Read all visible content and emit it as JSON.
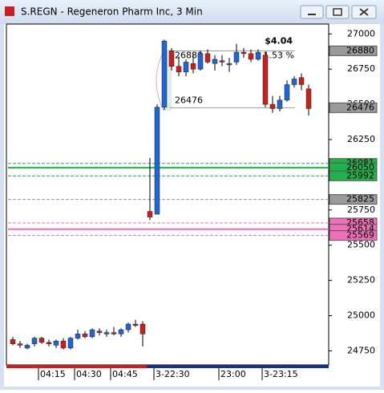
{
  "chart_data": {
    "type": "candlestick",
    "title": "S.REGN - Regeneron Pharm Inc, 3 Min",
    "categories": [
      null,
      null,
      null,
      null,
      "04:15",
      null,
      null,
      null,
      null,
      "04:30",
      null,
      null,
      null,
      null,
      "04:45",
      null,
      null,
      null,
      null,
      null,
      "3-22:30",
      null,
      null,
      null,
      null,
      null,
      null,
      null,
      null,
      "23:00",
      null,
      null,
      null,
      null,
      null,
      "3-23:15",
      null,
      null,
      null,
      null,
      null,
      null
    ],
    "open": [
      24830,
      24800,
      24770,
      24800,
      24840,
      24810,
      24790,
      24820,
      24770,
      24840,
      24870,
      24850,
      24890,
      24870,
      24880,
      24870,
      24900,
      24940,
      24940,
      25740,
      25720,
      26480,
      26880,
      26770,
      26730,
      26790,
      26750,
      26860,
      26790,
      26810,
      26780,
      26800,
      26870,
      26860,
      26820,
      26850,
      26500,
      26470,
      26530,
      26640,
      26690,
      26610
    ],
    "high": [
      24850,
      24820,
      24800,
      24850,
      24850,
      24830,
      24830,
      24840,
      24850,
      24900,
      24890,
      24910,
      24910,
      24900,
      24920,
      24910,
      24950,
      24970,
      24960,
      26120,
      26500,
      26960,
      26900,
      26840,
      26820,
      26860,
      26880,
      26890,
      26850,
      26850,
      26830,
      26930,
      26900,
      26890,
      26890,
      26870,
      26560,
      26560,
      26670,
      26700,
      26720,
      26640
    ],
    "low": [
      24790,
      24770,
      24760,
      24780,
      24800,
      24780,
      24770,
      24760,
      24760,
      24830,
      24840,
      24840,
      24860,
      24850,
      24860,
      24850,
      24880,
      24920,
      24780,
      25680,
      25720,
      26460,
      26740,
      26700,
      26700,
      26720,
      26740,
      26790,
      26740,
      26770,
      26730,
      26780,
      26830,
      26800,
      26810,
      26480,
      26440,
      26450,
      26520,
      26620,
      26600,
      26420
    ],
    "close": [
      24800,
      24790,
      24790,
      24840,
      24810,
      24800,
      24820,
      24770,
      24840,
      24870,
      24850,
      24900,
      24880,
      24880,
      24870,
      24900,
      24940,
      24930,
      24870,
      25700,
      26480,
      26950,
      26770,
      26730,
      26800,
      26750,
      26860,
      26800,
      26820,
      26800,
      26790,
      26870,
      26860,
      26820,
      26870,
      26500,
      26470,
      26530,
      26640,
      26680,
      26640,
      26470
    ],
    "up_color": "#1f66d1",
    "down_color": "#c8201e",
    "ylim": [
      24650,
      27070
    ],
    "yticks": [
      24750,
      25000,
      25250,
      25500,
      25750,
      26000,
      26250,
      26500,
      26750,
      27000
    ],
    "levels": [
      {
        "value": 26880,
        "color": "#9a9a9a",
        "style": "solid"
      },
      {
        "value": 26476,
        "color": "#9a9a9a",
        "style": "solid"
      },
      {
        "value": 26081,
        "color": "#22b04a",
        "style": "dashed"
      },
      {
        "value": 26050,
        "color": "#22b04a",
        "style": "solid"
      },
      {
        "value": 25992,
        "color": "#22b04a",
        "style": "dashed"
      },
      {
        "value": 25825,
        "color": "#9a9a9a",
        "style": "dashed"
      },
      {
        "value": 25658,
        "color": "#f06fb8",
        "style": "dashed"
      },
      {
        "value": 25614,
        "color": "#f06fb8",
        "style": "solid"
      },
      {
        "value": 25569,
        "color": "#f06fb8",
        "style": "dashed"
      }
    ],
    "measure": {
      "high": 26880,
      "low": 26476,
      "change": "$4.04",
      "percent": "1.53 %"
    }
  }
}
